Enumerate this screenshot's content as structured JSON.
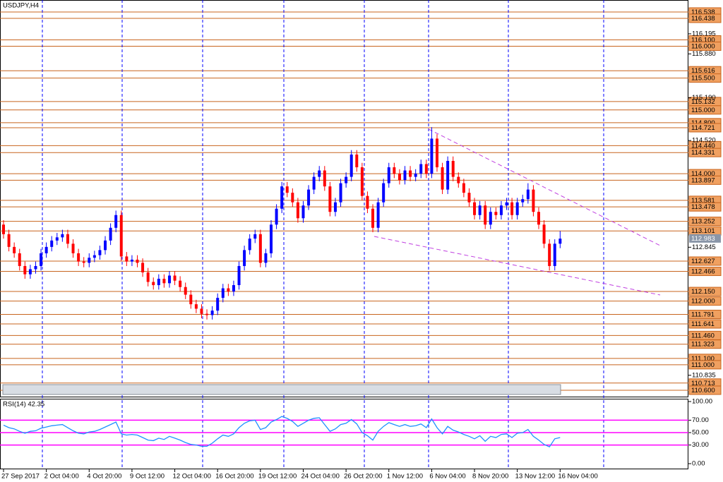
{
  "chart_data": {
    "type": "candlestick",
    "title": "USDJPY,H4",
    "categories": [
      "27 Sep 2017",
      null,
      null,
      null,
      null,
      null,
      null,
      null,
      "2 Oct 04:00",
      null,
      null,
      null,
      null,
      null,
      null,
      null,
      "4 Oct 20:00",
      null,
      null,
      null,
      null,
      null,
      null,
      null,
      "9 Oct 12:00",
      null,
      null,
      null,
      null,
      null,
      null,
      null,
      "12 Oct 04:00",
      null,
      null,
      null,
      null,
      null,
      null,
      null,
      "16 Oct 20:00",
      null,
      null,
      null,
      null,
      null,
      null,
      null,
      "19 Oct 12:00",
      null,
      null,
      null,
      null,
      null,
      null,
      null,
      "24 Oct 04:00",
      null,
      null,
      null,
      null,
      null,
      null,
      null,
      "26 Oct 20:00",
      null,
      null,
      null,
      null,
      null,
      null,
      null,
      "1 Nov 12:00",
      null,
      null,
      null,
      null,
      null,
      null,
      null,
      "6 Nov 04:00",
      null,
      null,
      null,
      null,
      null,
      null,
      null,
      "8 Nov 20:00",
      null,
      null,
      null,
      null,
      null,
      null,
      null,
      "13 Nov 12:00",
      null,
      null,
      null,
      null,
      null,
      null,
      null,
      "16 Nov 04:00"
    ],
    "open": [
      113.2,
      113.05,
      112.85,
      112.75,
      112.55,
      112.42,
      112.5,
      112.55,
      112.75,
      112.85,
      112.95,
      113.0,
      113.05,
      112.9,
      112.75,
      112.62,
      112.6,
      112.68,
      112.72,
      112.8,
      112.95,
      113.15,
      113.35,
      112.7,
      112.62,
      112.65,
      112.6,
      112.45,
      112.3,
      112.25,
      112.35,
      112.28,
      112.4,
      112.32,
      112.22,
      112.1,
      111.95,
      111.88,
      111.8,
      111.78,
      111.85,
      112.05,
      112.2,
      112.15,
      112.25,
      112.55,
      112.8,
      112.98,
      113.05,
      112.6,
      112.75,
      113.2,
      113.45,
      113.8,
      113.7,
      113.55,
      113.3,
      113.5,
      113.75,
      113.95,
      114.05,
      113.8,
      113.4,
      113.55,
      113.85,
      113.95,
      114.3,
      114.1,
      113.65,
      113.45,
      113.15,
      113.55,
      113.85,
      114.1,
      114.0,
      113.9,
      114.05,
      113.95,
      114.0,
      114.15,
      114.0,
      114.55,
      114.1,
      113.75,
      114.2,
      113.95,
      113.85,
      113.7,
      113.55,
      113.35,
      113.5,
      113.2,
      113.4,
      113.35,
      113.5,
      113.55,
      113.35,
      113.55,
      113.6,
      113.75,
      113.4,
      113.2,
      112.9,
      112.55,
      112.9
    ],
    "high": [
      113.27,
      113.12,
      112.92,
      112.82,
      112.62,
      112.57,
      112.62,
      112.82,
      112.92,
      113.02,
      113.07,
      113.12,
      113.12,
      112.97,
      112.82,
      112.69,
      112.75,
      112.79,
      112.87,
      113.02,
      113.22,
      113.42,
      113.42,
      112.77,
      112.72,
      112.72,
      112.67,
      112.52,
      112.37,
      112.42,
      112.42,
      112.47,
      112.47,
      112.39,
      112.29,
      112.17,
      112.02,
      111.95,
      111.87,
      111.92,
      112.12,
      112.27,
      112.27,
      112.32,
      112.62,
      112.87,
      113.05,
      113.12,
      113.12,
      112.82,
      113.27,
      113.52,
      113.87,
      113.87,
      113.77,
      113.62,
      113.57,
      113.82,
      114.02,
      114.12,
      114.12,
      113.87,
      113.62,
      113.92,
      114.02,
      114.37,
      114.37,
      114.17,
      113.72,
      113.52,
      113.62,
      113.92,
      114.17,
      114.17,
      114.07,
      114.12,
      114.12,
      114.07,
      114.22,
      114.22,
      114.73,
      114.62,
      114.17,
      114.27,
      114.27,
      114.02,
      113.92,
      113.77,
      113.62,
      113.57,
      113.57,
      113.47,
      113.47,
      113.57,
      113.62,
      113.62,
      113.62,
      113.67,
      113.85,
      113.82,
      113.47,
      113.27,
      112.97,
      112.97,
      113.1
    ],
    "low": [
      112.98,
      112.78,
      112.68,
      112.48,
      112.35,
      112.35,
      112.43,
      112.48,
      112.68,
      112.78,
      112.88,
      112.93,
      112.83,
      112.68,
      112.55,
      112.53,
      112.53,
      112.61,
      112.65,
      112.73,
      112.88,
      113.08,
      112.63,
      112.55,
      112.55,
      112.53,
      112.38,
      112.23,
      112.18,
      112.18,
      112.21,
      112.21,
      112.25,
      112.15,
      112.03,
      111.88,
      111.81,
      111.73,
      111.71,
      111.71,
      111.78,
      111.98,
      112.08,
      112.08,
      112.18,
      112.48,
      112.73,
      112.91,
      112.53,
      112.53,
      112.68,
      113.13,
      113.38,
      113.63,
      113.48,
      113.23,
      113.23,
      113.43,
      113.68,
      113.88,
      113.73,
      113.33,
      113.33,
      113.48,
      113.78,
      113.88,
      114.03,
      113.58,
      113.38,
      113.08,
      113.08,
      113.48,
      113.78,
      113.93,
      113.83,
      113.83,
      113.88,
      113.88,
      113.93,
      113.93,
      113.93,
      114.03,
      113.68,
      113.68,
      113.88,
      113.78,
      113.63,
      113.48,
      113.28,
      113.28,
      113.13,
      113.13,
      113.28,
      113.28,
      113.43,
      113.28,
      113.28,
      113.48,
      113.53,
      113.33,
      113.13,
      112.83,
      112.48,
      112.48,
      112.83
    ],
    "close": [
      113.05,
      112.85,
      112.75,
      112.55,
      112.42,
      112.5,
      112.55,
      112.75,
      112.85,
      112.95,
      113.0,
      113.05,
      112.9,
      112.75,
      112.62,
      112.6,
      112.68,
      112.72,
      112.8,
      112.95,
      113.15,
      113.35,
      112.7,
      112.62,
      112.65,
      112.6,
      112.45,
      112.3,
      112.25,
      112.35,
      112.28,
      112.4,
      112.32,
      112.22,
      112.1,
      111.95,
      111.88,
      111.8,
      111.78,
      111.85,
      112.05,
      112.2,
      112.15,
      112.25,
      112.55,
      112.8,
      112.98,
      113.05,
      112.6,
      112.75,
      113.2,
      113.45,
      113.8,
      113.7,
      113.55,
      113.3,
      113.5,
      113.75,
      113.95,
      114.05,
      113.8,
      113.4,
      113.55,
      113.85,
      113.95,
      114.3,
      114.1,
      113.65,
      113.45,
      113.15,
      113.55,
      113.85,
      114.1,
      114.0,
      113.9,
      114.05,
      113.95,
      114.0,
      114.15,
      114.0,
      114.55,
      114.1,
      113.75,
      114.2,
      113.95,
      113.85,
      113.7,
      113.55,
      113.35,
      113.5,
      113.2,
      113.4,
      113.35,
      113.5,
      113.55,
      113.35,
      113.55,
      113.6,
      113.75,
      113.4,
      113.2,
      112.9,
      112.55,
      112.9,
      112.98
    ],
    "up_color": "#0000ff",
    "down_color": "#ff0000",
    "ylim": [
      110.5,
      116.726
    ],
    "yticks": [
      116.195,
      {
        "value": 115.88,
        "label": "115.880"
      },
      {
        "value": 115.19,
        "label": "115.190"
      },
      {
        "value": 114.52,
        "label": "114.520"
      },
      112.845,
      110.835
    ],
    "levels": [
      116.538,
      116.438,
      {
        "value": 116.1,
        "label": "116.100"
      },
      {
        "value": 116.0,
        "label": "116.000"
      },
      115.616,
      {
        "value": 115.5,
        "label": "115.500"
      },
      115.132,
      {
        "value": 115.0,
        "label": "115.000"
      },
      {
        "value": 114.8,
        "label": "114.800"
      },
      114.721,
      {
        "value": 114.44,
        "label": "114.440"
      },
      114.331,
      {
        "value": 114.0,
        "label": "114.000"
      },
      113.897,
      113.581,
      113.478,
      113.252,
      113.101,
      112.627,
      112.466,
      {
        "value": 112.15,
        "label": "112.150"
      },
      {
        "value": 112.0,
        "label": "112.000"
      },
      111.791,
      111.641,
      {
        "value": 111.46,
        "label": "111.460"
      },
      111.323,
      {
        "value": 111.1,
        "label": "111.100"
      },
      {
        "value": 111.0,
        "label": "111.000"
      },
      110.713,
      {
        "value": 110.6,
        "label": "110.600"
      }
    ],
    "level_color": "#c8641e",
    "current_price": 112.983,
    "rsi": {
      "title": "RSI(14) 42.35",
      "color": "#1e90ff",
      "values": [
        62,
        58,
        56,
        52,
        49,
        52,
        53,
        57,
        59,
        61,
        62,
        63,
        58,
        53,
        49,
        48,
        51,
        52,
        55,
        59,
        63,
        67,
        48,
        46,
        47,
        46,
        42,
        38,
        37,
        41,
        39,
        44,
        41,
        38,
        34,
        31,
        30,
        28,
        28,
        33,
        40,
        46,
        44,
        48,
        58,
        65,
        69,
        70,
        55,
        58,
        67,
        71,
        76,
        73,
        68,
        60,
        65,
        70,
        73,
        74,
        63,
        52,
        56,
        63,
        65,
        71,
        64,
        50,
        45,
        38,
        52,
        60,
        66,
        63,
        60,
        63,
        60,
        61,
        64,
        58,
        72,
        58,
        48,
        60,
        54,
        51,
        47,
        44,
        40,
        45,
        36,
        44,
        42,
        47,
        48,
        42,
        49,
        50,
        55,
        44,
        38,
        31,
        27,
        40,
        42
      ],
      "ylim": [
        0,
        100
      ],
      "yticks": [
        {
          "value": 100,
          "label": "100.00"
        },
        {
          "value": 70,
          "label": "70.00"
        },
        {
          "value": 50,
          "label": "50.00"
        },
        {
          "value": 30,
          "label": "30.00"
        },
        {
          "value": 0,
          "label": "0.00"
        }
      ],
      "levels": [
        70,
        50,
        30
      ],
      "level_color": "#ff00ff"
    }
  }
}
